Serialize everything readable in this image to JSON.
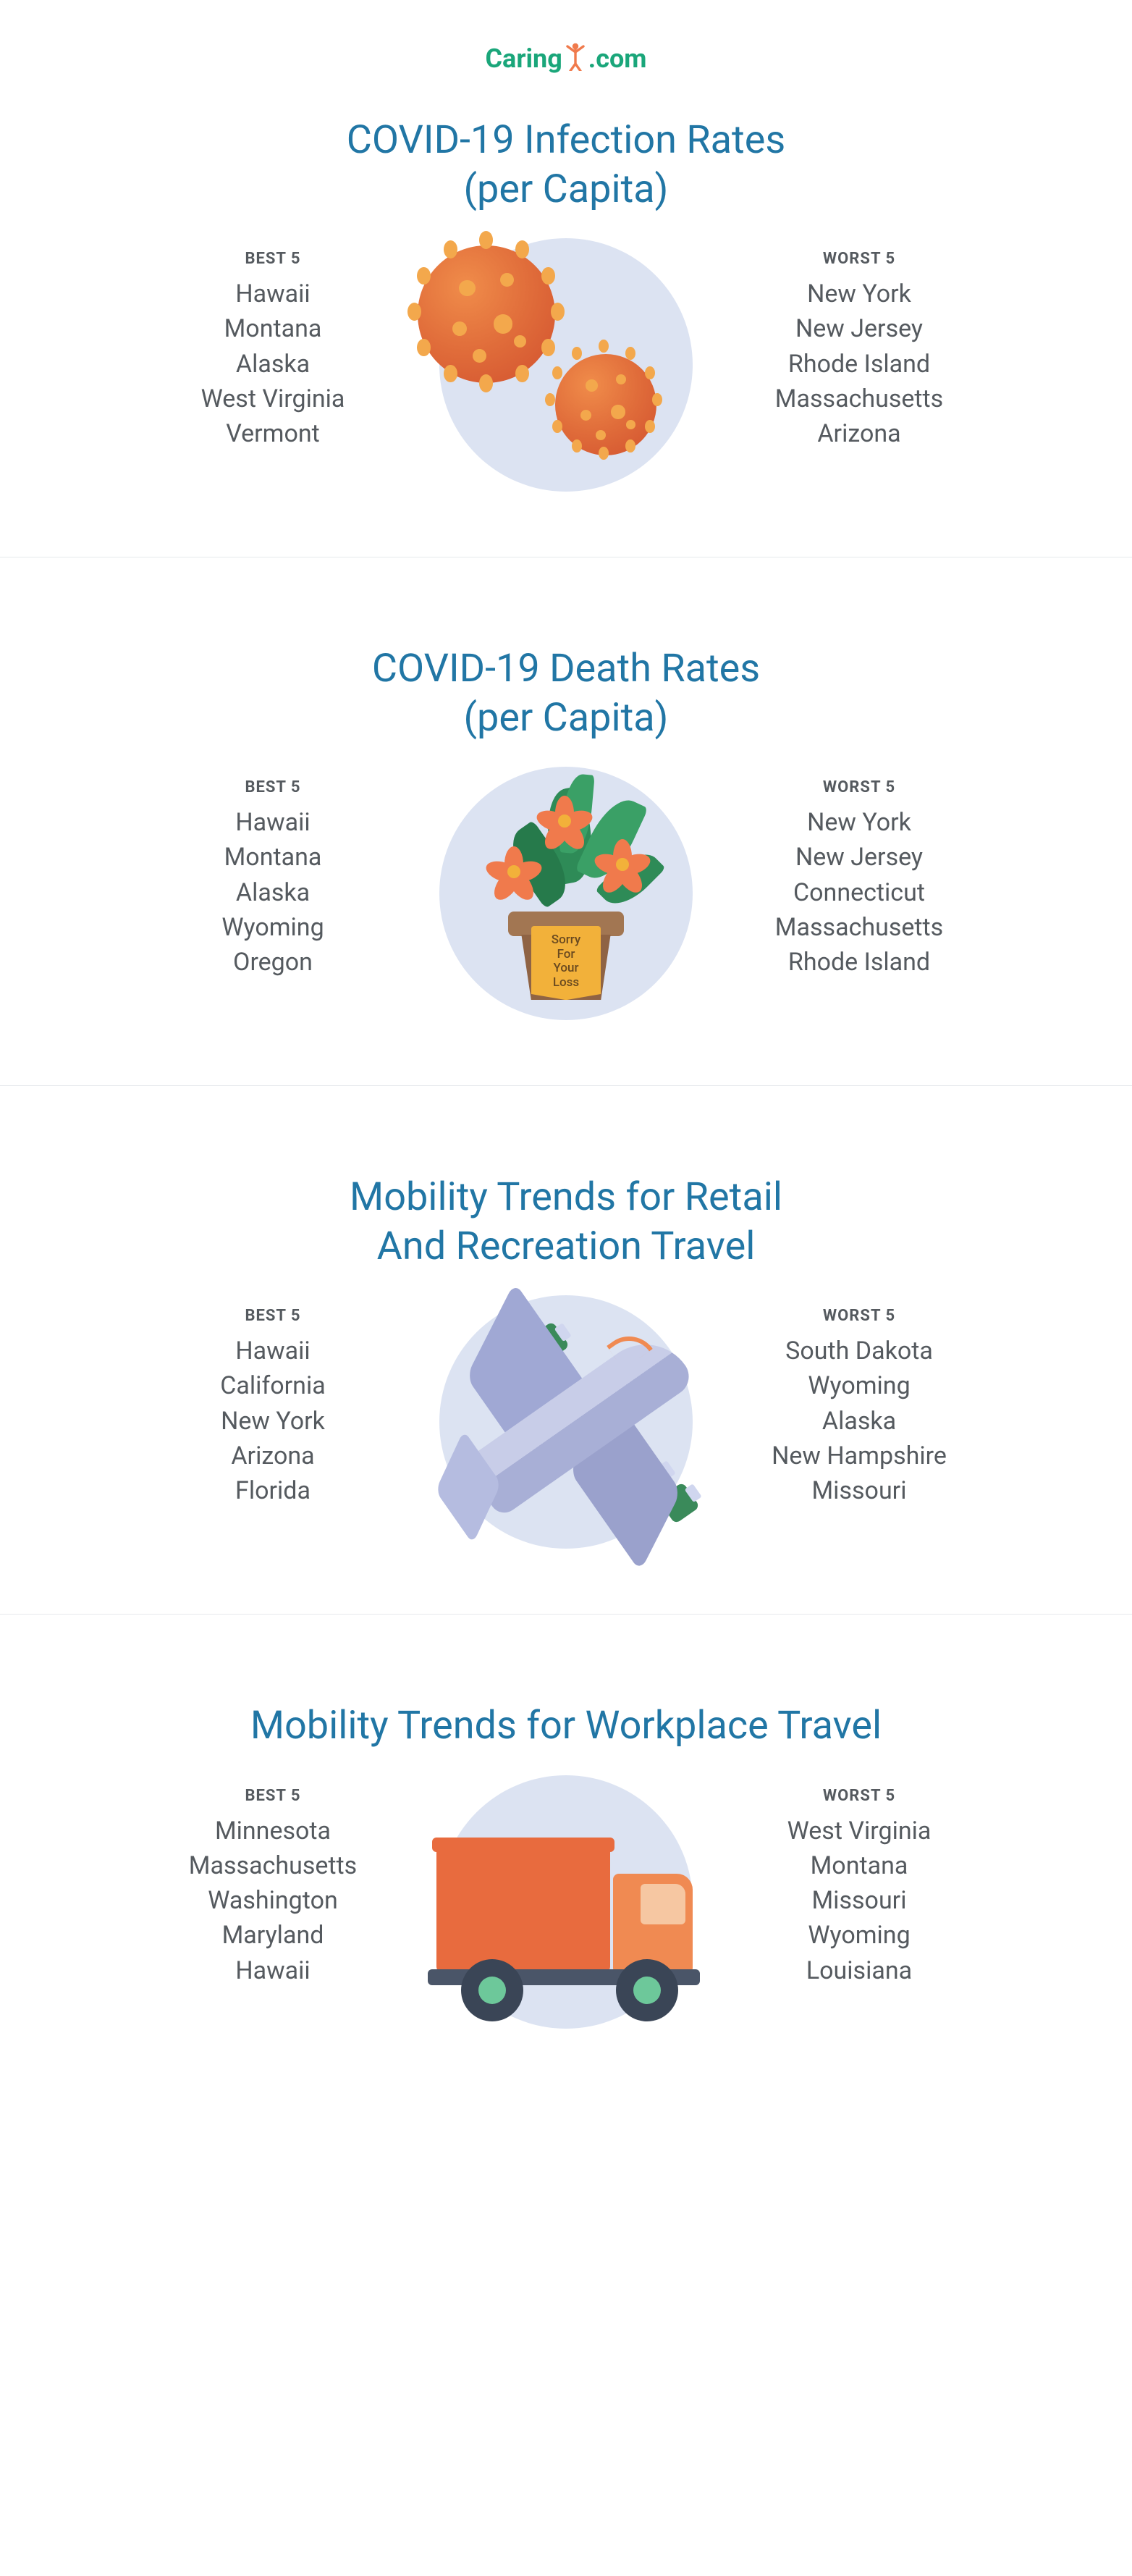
{
  "brand": {
    "name": "Caring",
    "suffix": ".com",
    "color_primary": "#1aa67a",
    "icon_color": "#f07a4c"
  },
  "headers": {
    "best": "Best 5",
    "worst": "Worst 5"
  },
  "sections": [
    {
      "title_line1": "COVID-19 Infection Rates",
      "title_line2": "(per Capita)",
      "illustration": "virus",
      "best": [
        "Hawaii",
        "Montana",
        "Alaska",
        "West Virginia",
        "Vermont"
      ],
      "worst": [
        "New York",
        "New Jersey",
        "Rhode Island",
        "Massachusetts",
        "Arizona"
      ]
    },
    {
      "title_line1": "COVID-19 Death Rates",
      "title_line2": "(per Capita)",
      "illustration": "plant",
      "plant_tag_l1": "Sorry",
      "plant_tag_l2": "For",
      "plant_tag_l3": "Your",
      "plant_tag_l4": "Loss",
      "best": [
        "Hawaii",
        "Montana",
        "Alaska",
        "Wyoming",
        "Oregon"
      ],
      "worst": [
        "New York",
        "New Jersey",
        "Connecticut",
        "Massachusetts",
        "Rhode Island"
      ]
    },
    {
      "title_line1": "Mobility Trends for Retail",
      "title_line2": "And Recreation Travel",
      "illustration": "plane",
      "best": [
        "Hawaii",
        "California",
        "New York",
        "Arizona",
        "Florida"
      ],
      "worst": [
        "South Dakota",
        "Wyoming",
        "Alaska",
        "New Hampshire",
        "Missouri"
      ]
    },
    {
      "title_line1": "Mobility Trends for Workplace Travel",
      "title_line2": "",
      "illustration": "truck",
      "best": [
        "Minnesota",
        "Massachusetts",
        "Washington",
        "Maryland",
        "Hawaii"
      ],
      "worst": [
        "West Virginia",
        "Montana",
        "Missouri",
        "Wyoming",
        "Louisiana"
      ]
    }
  ],
  "styling": {
    "title_color": "#2176a5",
    "title_fontsize": 54,
    "body_text_color": "#555a5f",
    "list_fontsize": 34,
    "header_fontsize": 22,
    "divider_color": "#e6e9ec",
    "circle_bg": "#dce3f2",
    "virus_fill": "#e06c3a",
    "virus_accent": "#f3a84c",
    "leaf_green": "#2e8b57",
    "flower_petal": "#f07a4c",
    "flower_center": "#f2b13a",
    "pot_top": "#a27652",
    "pot_body": "#8f6344",
    "tag_bg": "#f2b13a",
    "plane_body": "#b5bce0",
    "plane_wing": "#a0a8d4",
    "engine_green": "#3a8a5a",
    "truck_orange": "#e86b3e",
    "truck_cab": "#f08a52",
    "truck_window": "#f6c7a2",
    "wheel_dark": "#3a4556",
    "wheel_hub": "#6dc89a"
  }
}
